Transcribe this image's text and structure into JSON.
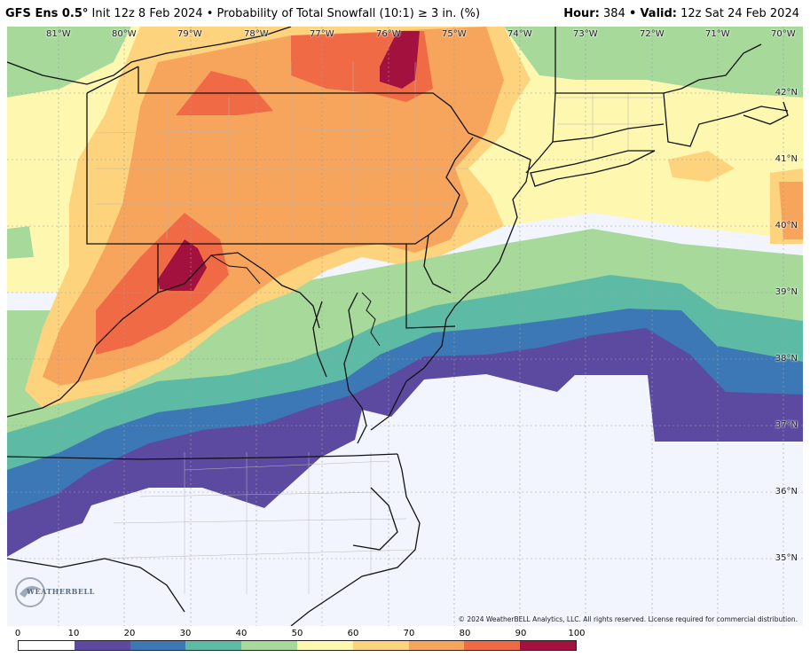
{
  "header": {
    "model": "GFS Ens 0.5",
    "degree": "°",
    "init": "Init 12z 8 Feb 2024",
    "bullet": "•",
    "product": "Probability of Total Snowfall (10:1)  ≥  3 in. (%)",
    "hour_label": "Hour:",
    "hour_value": "384",
    "valid_label": "Valid:",
    "valid_value": "12z Sat 24 Feb 2024"
  },
  "longitudes": [
    "81°W",
    "80°W",
    "79°W",
    "78°W",
    "77°W",
    "76°W",
    "75°W",
    "74°W",
    "73°W",
    "72°W",
    "71°W",
    "70°W"
  ],
  "latitudes": [
    "42°N",
    "41°N",
    "40°N",
    "39°N",
    "38°N",
    "37°N",
    "36°N",
    "35°N"
  ],
  "copyright": "© 2024 WeatherBELL Analytics, LLC. All rights reserved. License required for commercial distribution.",
  "logo_text": "WEATHERBELL",
  "legend": {
    "ticks": [
      "0",
      "10",
      "20",
      "30",
      "40",
      "50",
      "60",
      "70",
      "80",
      "90",
      "100"
    ],
    "colors": [
      "#ffffff",
      "#5b4aa0",
      "#3b78b5",
      "#5dbba5",
      "#a7d99b",
      "#fdf7b0",
      "#fdd37e",
      "#f7a45c",
      "#ef6a45",
      "#a3123f"
    ]
  }
}
